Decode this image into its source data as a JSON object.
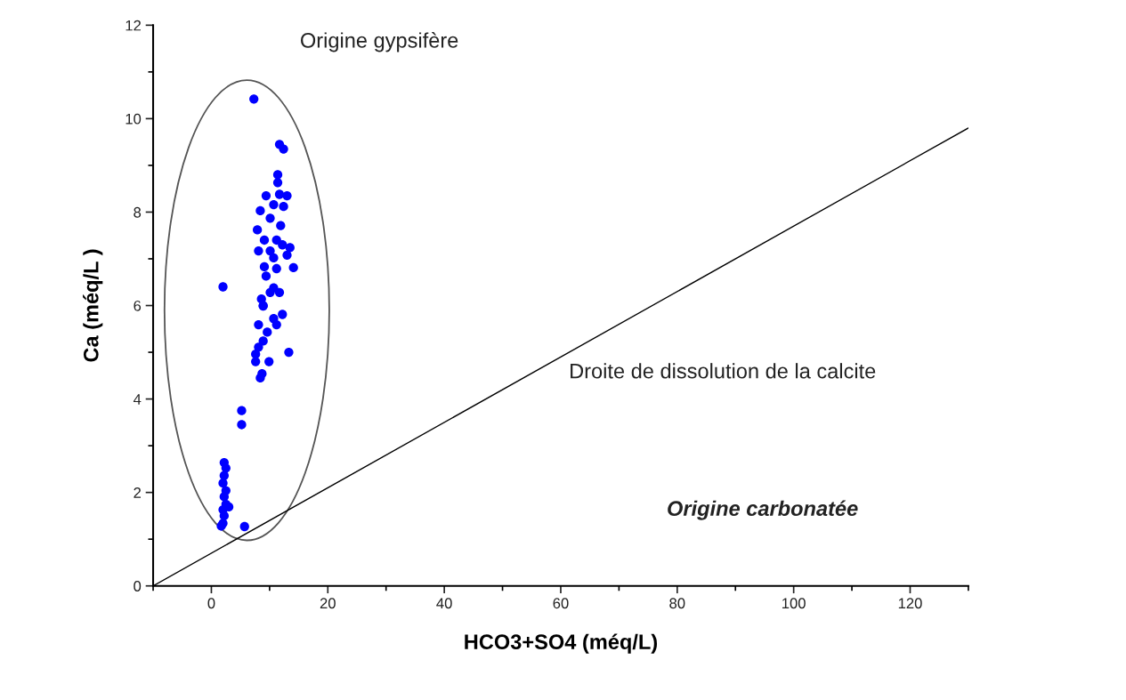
{
  "chart_data": {
    "type": "scatter",
    "xlabel": "HCO3+SO4 (méq/L)",
    "ylabel": "Ca (méq/L )",
    "xlim": [
      -10,
      130
    ],
    "xticks": [
      0,
      20,
      40,
      60,
      80,
      100,
      120
    ],
    "ylim": [
      0,
      12
    ],
    "yticks": [
      0,
      2,
      4,
      6,
      8,
      10,
      12
    ],
    "grid": false,
    "annotations": [
      "Origine gypsifère",
      "Droite de dissolution de la calcite",
      "Origine carbonatée"
    ],
    "series": [
      {
        "color": "#0000ff",
        "marker": "circle",
        "x": [
          7.3,
          11.7,
          12.4,
          11.4,
          11.4,
          9.4,
          11.7,
          13.0,
          12.4,
          10.7,
          8.4,
          10.1,
          11.9,
          7.9,
          9.1,
          11.2,
          13.5,
          8.1,
          10.1,
          12.2,
          10.7,
          13.0,
          9.1,
          11.2,
          14.1,
          9.4,
          2.0,
          10.7,
          11.7,
          10.1,
          8.6,
          8.9,
          8.9,
          12.2,
          10.7,
          8.1,
          11.2,
          9.6,
          8.9,
          8.1,
          7.6,
          7.6,
          9.9,
          13.3,
          8.7,
          8.4,
          5.2,
          5.2,
          2.2,
          2.5,
          2.2,
          2.0,
          2.5,
          2.2,
          2.5,
          2.0,
          2.2,
          2.0,
          1.7,
          3.0,
          5.7
        ],
        "values": [
          10.42,
          9.45,
          9.35,
          8.8,
          8.63,
          8.35,
          8.38,
          8.35,
          8.12,
          8.16,
          8.03,
          7.87,
          7.71,
          7.62,
          7.4,
          7.4,
          7.24,
          7.17,
          7.17,
          7.3,
          7.02,
          7.08,
          6.83,
          6.79,
          6.81,
          6.63,
          6.4,
          6.38,
          6.28,
          6.28,
          6.14,
          6.0,
          5.99,
          5.81,
          5.72,
          5.59,
          5.59,
          5.43,
          5.24,
          5.11,
          4.96,
          4.8,
          4.8,
          5.0,
          4.54,
          4.45,
          3.75,
          3.45,
          2.64,
          2.52,
          2.36,
          2.2,
          2.04,
          1.91,
          1.75,
          1.63,
          1.5,
          1.34,
          1.28,
          1.69,
          1.27
        ]
      },
      {
        "type": "line",
        "color": "#000000",
        "marker": "none",
        "x": [
          -10,
          130
        ],
        "values": [
          0,
          9.8
        ]
      }
    ]
  }
}
